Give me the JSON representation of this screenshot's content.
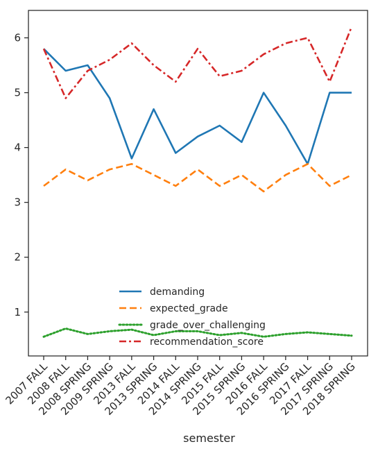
{
  "chart_data": {
    "type": "line",
    "title": "",
    "xlabel": "semester",
    "ylabel": "",
    "categories": [
      "2007 FALL",
      "2008 FALL",
      "2008 SPRING",
      "2009 SPRING",
      "2013 FALL",
      "2013 SPRING",
      "2014 FALL",
      "2014 SPRING",
      "2015 FALL",
      "2015 SPRING",
      "2016 FALL",
      "2016 SPRING",
      "2017 FALL",
      "2017 SPRING",
      "2018 SPRING"
    ],
    "ylim": [
      0.2,
      6.5
    ],
    "yticks": [
      1,
      2,
      3,
      4,
      5,
      6
    ],
    "legend_position": "lower-center",
    "series": [
      {
        "name": "demanding",
        "color": "#1f77b4",
        "dash": "solid",
        "values": [
          5.8,
          5.4,
          5.5,
          4.9,
          3.8,
          4.7,
          3.9,
          4.2,
          4.4,
          4.1,
          5.0,
          4.4,
          3.7,
          5.0,
          5.0
        ]
      },
      {
        "name": "expected_grade",
        "color": "#ff7f0e",
        "dash": "dashed",
        "values": [
          3.3,
          3.6,
          3.4,
          3.6,
          3.7,
          3.5,
          3.3,
          3.6,
          3.3,
          3.5,
          3.2,
          3.5,
          3.7,
          3.3,
          3.5
        ]
      },
      {
        "name": "grade_over_challenging",
        "color": "#2ca02c",
        "dash": "dotted",
        "values": [
          0.55,
          0.7,
          0.6,
          0.65,
          0.68,
          0.58,
          0.65,
          0.65,
          0.58,
          0.62,
          0.55,
          0.6,
          0.63,
          0.6,
          0.57
        ]
      },
      {
        "name": "recommendation_score",
        "color": "#d62728",
        "dash": "dashdot",
        "values": [
          5.8,
          4.9,
          5.4,
          5.6,
          5.9,
          5.5,
          5.2,
          5.8,
          5.3,
          5.4,
          5.7,
          5.9,
          6.0,
          5.2,
          6.2
        ]
      }
    ]
  }
}
